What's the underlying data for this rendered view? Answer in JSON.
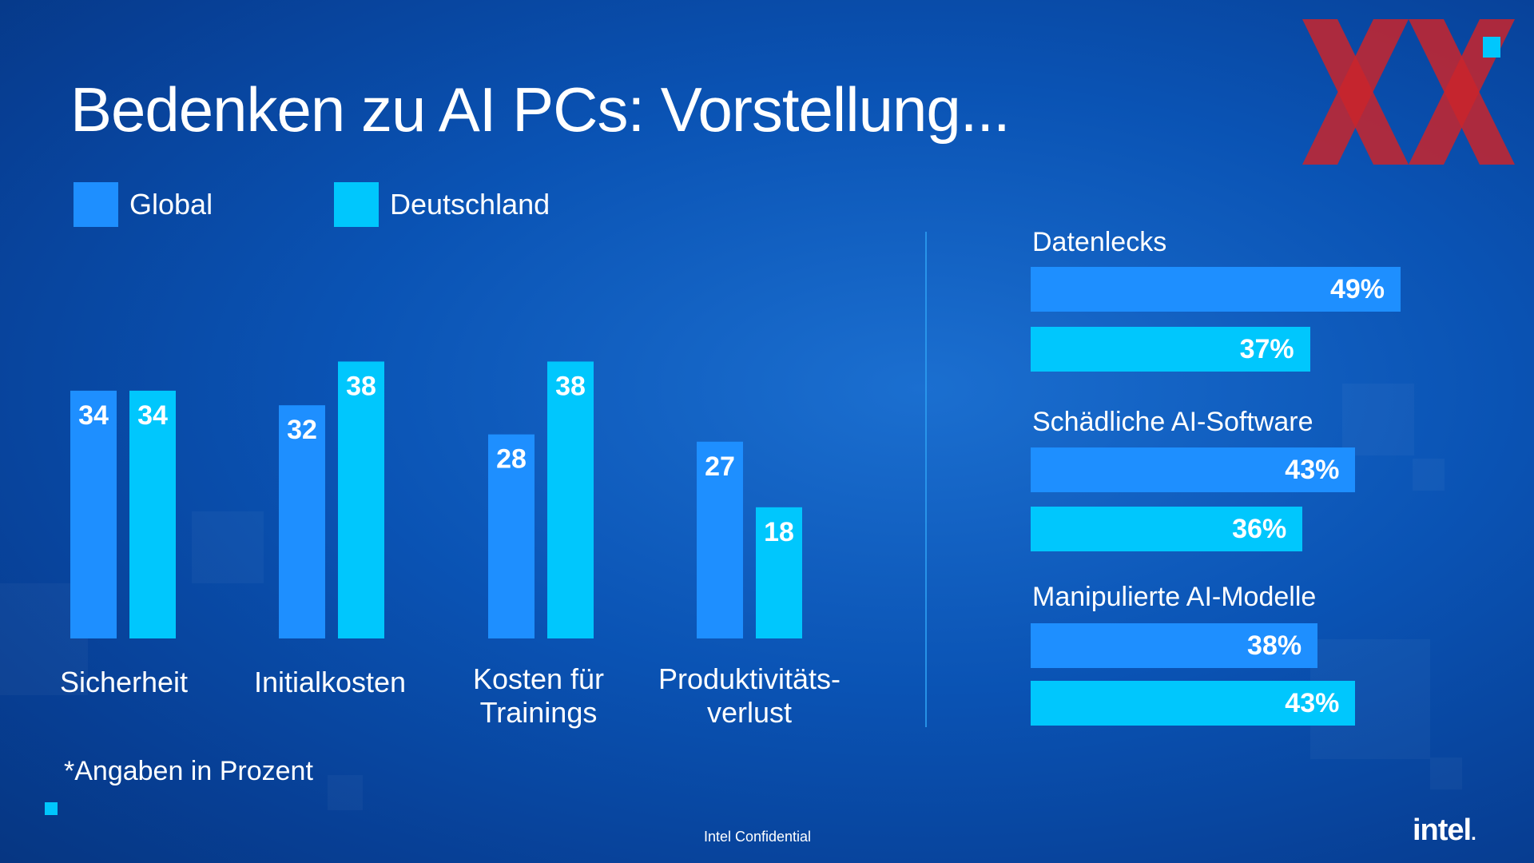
{
  "title": "Bedenken zu AI PCs: Vorstellung...",
  "colors": {
    "global": "#1e8fff",
    "deutschland": "#00c7fd",
    "logo_red": "#c9252c"
  },
  "legend": [
    {
      "label": "Global"
    },
    {
      "label": "Deutschland"
    }
  ],
  "chart_data": [
    {
      "type": "bar",
      "categories": [
        "Sicherheit",
        "Initialkosten",
        "Kosten für\nTrainings",
        "Produktivitäts-\nverlust"
      ],
      "series": [
        {
          "name": "Global",
          "values": [
            34,
            32,
            28,
            27
          ]
        },
        {
          "name": "Deutschland",
          "values": [
            34,
            38,
            38,
            18
          ]
        }
      ],
      "data_labels": true,
      "ylim": [
        0,
        38
      ]
    },
    {
      "type": "bar",
      "orientation": "horizontal",
      "categories": [
        "Datenlecks",
        "Schädliche AI-Software",
        "Manipulierte AI-Modelle"
      ],
      "series": [
        {
          "name": "Global",
          "values": [
            49,
            43,
            38
          ]
        },
        {
          "name": "Deutschland",
          "values": [
            37,
            36,
            43
          ]
        }
      ],
      "value_suffix": "%"
    }
  ],
  "footnote": "*Angaben in Prozent",
  "footer": {
    "confidential": "Intel Confidential",
    "logo_text": "intel",
    "logo_dot": "."
  }
}
